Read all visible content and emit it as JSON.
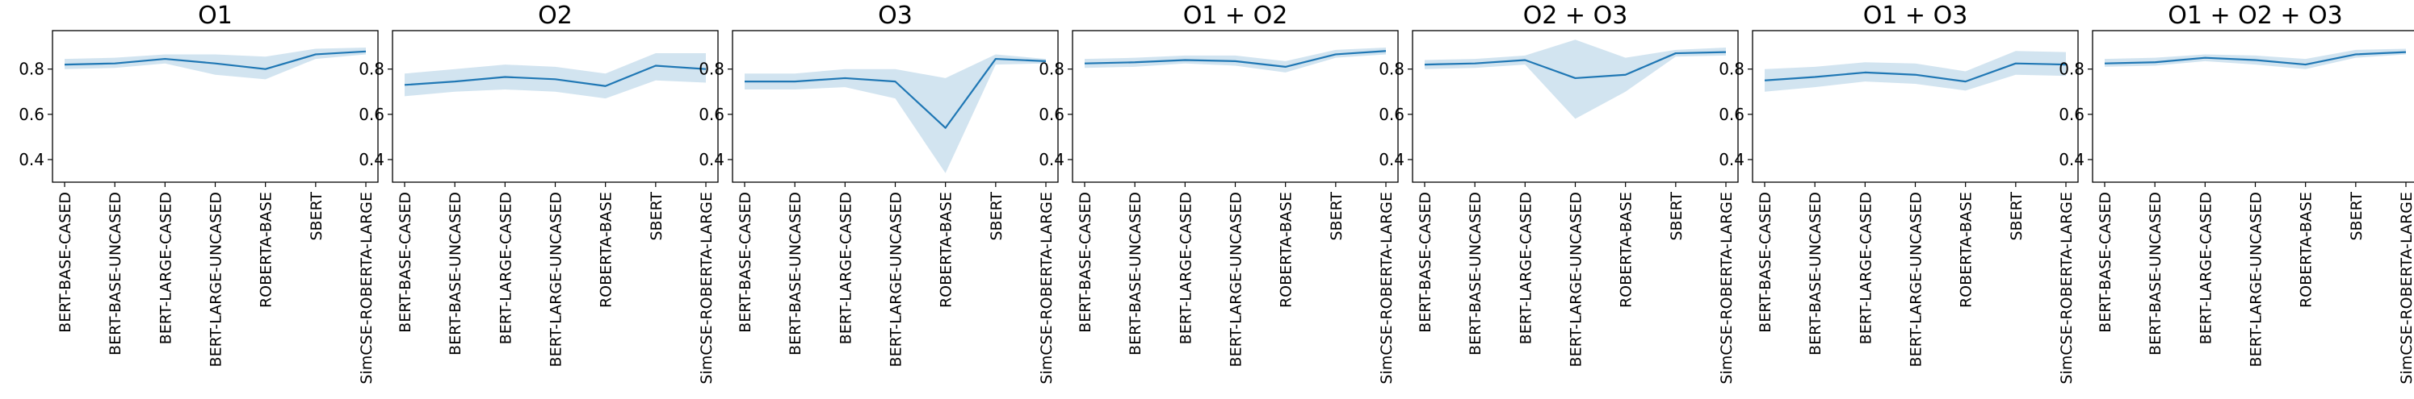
{
  "figure": {
    "x_categories": [
      "BERT-BASE-CASED",
      "BERT-BASE-UNCASED",
      "BERT-LARGE-CASED",
      "BERT-LARGE-UNCASED",
      "ROBERTA-BASE",
      "SBERT",
      "SimCSE-ROBERTA-LARGE"
    ],
    "yticks": [
      "0.4",
      "0.6",
      "0.8"
    ],
    "colors": {
      "line": "#1f77b4",
      "band": "#1f77b4",
      "band_opacity": 0.2
    }
  },
  "chart_data": [
    {
      "type": "line",
      "title": "O1",
      "categories": [
        "BERT-BASE-CASED",
        "BERT-BASE-UNCASED",
        "BERT-LARGE-CASED",
        "BERT-LARGE-UNCASED",
        "ROBERTA-BASE",
        "SBERT",
        "SimCSE-ROBERTA-LARGE"
      ],
      "values": [
        0.82,
        0.825,
        0.845,
        0.825,
        0.8,
        0.865,
        0.878
      ],
      "lower": [
        0.8,
        0.805,
        0.825,
        0.775,
        0.755,
        0.845,
        0.865
      ],
      "upper": [
        0.845,
        0.85,
        0.865,
        0.865,
        0.855,
        0.89,
        0.895
      ],
      "ylim": [
        0.3,
        0.97
      ],
      "grid": false
    },
    {
      "type": "line",
      "title": "O2",
      "categories": [
        "BERT-BASE-CASED",
        "BERT-BASE-UNCASED",
        "BERT-LARGE-CASED",
        "BERT-LARGE-UNCASED",
        "ROBERTA-BASE",
        "SBERT",
        "SimCSE-ROBERTA-LARGE"
      ],
      "values": [
        0.73,
        0.745,
        0.765,
        0.755,
        0.725,
        0.815,
        0.8
      ],
      "lower": [
        0.68,
        0.7,
        0.71,
        0.7,
        0.67,
        0.75,
        0.74
      ],
      "upper": [
        0.78,
        0.8,
        0.82,
        0.81,
        0.78,
        0.87,
        0.87
      ],
      "ylim": [
        0.3,
        0.97
      ],
      "grid": false
    },
    {
      "type": "line",
      "title": "O3",
      "categories": [
        "BERT-BASE-CASED",
        "BERT-BASE-UNCASED",
        "BERT-LARGE-CASED",
        "BERT-LARGE-UNCASED",
        "ROBERTA-BASE",
        "SBERT",
        "SimCSE-ROBERTA-LARGE"
      ],
      "values": [
        0.745,
        0.745,
        0.76,
        0.745,
        0.54,
        0.845,
        0.835
      ],
      "lower": [
        0.71,
        0.71,
        0.72,
        0.67,
        0.34,
        0.82,
        0.825
      ],
      "upper": [
        0.78,
        0.78,
        0.8,
        0.8,
        0.76,
        0.865,
        0.845
      ],
      "ylim": [
        0.3,
        0.97
      ],
      "grid": false
    },
    {
      "type": "line",
      "title": "O1 + O2",
      "categories": [
        "BERT-BASE-CASED",
        "BERT-BASE-UNCASED",
        "BERT-LARGE-CASED",
        "BERT-LARGE-UNCASED",
        "ROBERTA-BASE",
        "SBERT",
        "SimCSE-ROBERTA-LARGE"
      ],
      "values": [
        0.825,
        0.83,
        0.84,
        0.835,
        0.81,
        0.865,
        0.88
      ],
      "lower": [
        0.805,
        0.81,
        0.825,
        0.815,
        0.785,
        0.85,
        0.865
      ],
      "upper": [
        0.845,
        0.85,
        0.86,
        0.86,
        0.835,
        0.885,
        0.895
      ],
      "ylim": [
        0.3,
        0.97
      ],
      "grid": false
    },
    {
      "type": "line",
      "title": "O2 + O3",
      "categories": [
        "BERT-BASE-CASED",
        "BERT-BASE-UNCASED",
        "BERT-LARGE-CASED",
        "BERT-LARGE-UNCASED",
        "ROBERTA-BASE",
        "SBERT",
        "SimCSE-ROBERTA-LARGE"
      ],
      "values": [
        0.82,
        0.825,
        0.84,
        0.76,
        0.775,
        0.87,
        0.875
      ],
      "lower": [
        0.8,
        0.805,
        0.82,
        0.58,
        0.7,
        0.855,
        0.86
      ],
      "upper": [
        0.84,
        0.845,
        0.86,
        0.93,
        0.85,
        0.885,
        0.895
      ],
      "ylim": [
        0.3,
        0.97
      ],
      "grid": false
    },
    {
      "type": "line",
      "title": "O1 + O3",
      "categories": [
        "BERT-BASE-CASED",
        "BERT-BASE-UNCASED",
        "BERT-LARGE-CASED",
        "BERT-LARGE-UNCASED",
        "ROBERTA-BASE",
        "SBERT",
        "SimCSE-ROBERTA-LARGE"
      ],
      "values": [
        0.75,
        0.765,
        0.785,
        0.775,
        0.745,
        0.825,
        0.82
      ],
      "lower": [
        0.7,
        0.72,
        0.745,
        0.735,
        0.705,
        0.775,
        0.77
      ],
      "upper": [
        0.8,
        0.81,
        0.83,
        0.825,
        0.79,
        0.88,
        0.875
      ],
      "ylim": [
        0.3,
        0.97
      ],
      "grid": false
    },
    {
      "type": "line",
      "title": "O1 + O2 + O3",
      "categories": [
        "BERT-BASE-CASED",
        "BERT-BASE-UNCASED",
        "BERT-LARGE-CASED",
        "BERT-LARGE-UNCASED",
        "ROBERTA-BASE",
        "SBERT",
        "SimCSE-ROBERTA-LARGE"
      ],
      "values": [
        0.825,
        0.83,
        0.85,
        0.84,
        0.82,
        0.865,
        0.875
      ],
      "lower": [
        0.81,
        0.815,
        0.835,
        0.82,
        0.8,
        0.85,
        0.865
      ],
      "upper": [
        0.845,
        0.85,
        0.865,
        0.86,
        0.845,
        0.885,
        0.89
      ],
      "ylim": [
        0.3,
        0.97
      ],
      "grid": false
    }
  ]
}
